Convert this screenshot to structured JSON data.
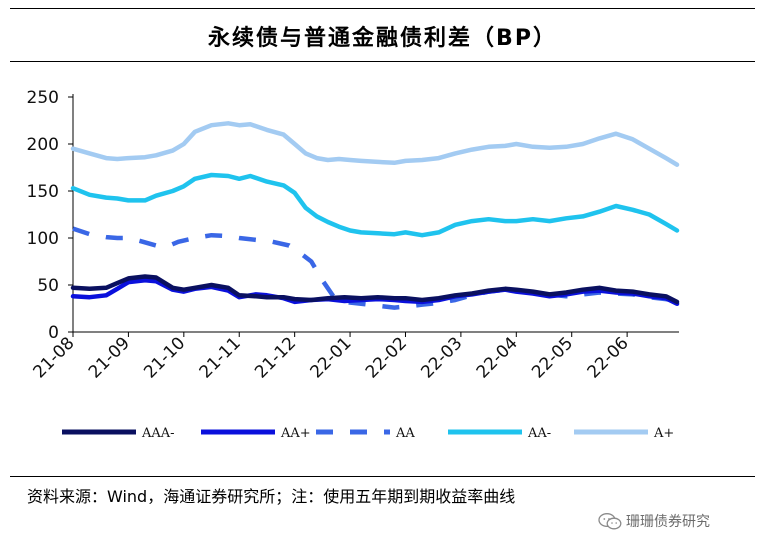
{
  "chart_data": {
    "type": "line",
    "title": "永续债与普通金融债利差（BP）",
    "xlabel": "",
    "ylabel": "",
    "ylim": [
      0,
      250
    ],
    "yticks": [
      0,
      50,
      100,
      150,
      200,
      250
    ],
    "xlim": [
      0,
      10.9
    ],
    "xticks": [
      {
        "label": "21-08",
        "pos": 0
      },
      {
        "label": "21-09",
        "pos": 1
      },
      {
        "label": "21-10",
        "pos": 2
      },
      {
        "label": "21-11",
        "pos": 3
      },
      {
        "label": "21-12",
        "pos": 4
      },
      {
        "label": "22-01",
        "pos": 5
      },
      {
        "label": "22-02",
        "pos": 6
      },
      {
        "label": "22-03",
        "pos": 7
      },
      {
        "label": "22-04",
        "pos": 8
      },
      {
        "label": "22-05",
        "pos": 9
      },
      {
        "label": "22-06",
        "pos": 10
      }
    ],
    "grid": false,
    "legend_position": "bottom",
    "series": [
      {
        "name": "AAA-",
        "color": "#0a1060",
        "dash": "solid",
        "x": [
          0,
          0.3,
          0.6,
          0.8,
          1.0,
          1.3,
          1.5,
          1.8,
          2.0,
          2.2,
          2.5,
          2.8,
          3.0,
          3.3,
          3.5,
          3.8,
          4.0,
          4.3,
          4.6,
          4.9,
          5.2,
          5.5,
          5.8,
          6.0,
          6.3,
          6.6,
          6.9,
          7.2,
          7.5,
          7.8,
          8.0,
          8.3,
          8.6,
          8.9,
          9.2,
          9.5,
          9.8,
          10.1,
          10.4,
          10.7,
          10.9
        ],
        "y": [
          47,
          46,
          47,
          52,
          57,
          59,
          58,
          47,
          45,
          47,
          50,
          47,
          39,
          38,
          37,
          37,
          35,
          34,
          36,
          37,
          36,
          37,
          36,
          36,
          34,
          36,
          39,
          41,
          44,
          46,
          45,
          43,
          40,
          42,
          45,
          47,
          44,
          43,
          40,
          38,
          32
        ]
      },
      {
        "name": "AA+",
        "color": "#0a10dc",
        "dash": "solid",
        "x": [
          0,
          0.3,
          0.6,
          0.8,
          1.0,
          1.3,
          1.5,
          1.8,
          2.0,
          2.2,
          2.5,
          2.8,
          3.0,
          3.3,
          3.5,
          3.8,
          4.0,
          4.3,
          4.6,
          4.9,
          5.2,
          5.5,
          5.8,
          6.0,
          6.3,
          6.6,
          6.9,
          7.2,
          7.5,
          7.8,
          8.0,
          8.3,
          8.6,
          8.9,
          9.2,
          9.5,
          9.8,
          10.1,
          10.4,
          10.7,
          10.9
        ],
        "y": [
          38,
          37,
          39,
          46,
          53,
          55,
          54,
          45,
          43,
          46,
          48,
          44,
          37,
          40,
          39,
          36,
          32,
          34,
          35,
          33,
          34,
          35,
          34,
          33,
          32,
          34,
          38,
          40,
          43,
          45,
          43,
          41,
          38,
          40,
          43,
          44,
          42,
          41,
          38,
          36,
          30
        ]
      },
      {
        "name": "AA",
        "color": "#3a67e6",
        "dash": "dashed",
        "x": [
          0,
          0.3,
          0.6,
          0.8,
          1.0,
          1.2,
          1.5,
          1.7,
          1.9,
          2.2,
          2.5,
          2.8,
          3.0,
          3.3,
          3.6,
          3.9,
          4.1,
          4.3,
          4.5,
          4.7,
          4.9,
          5.2,
          5.5,
          5.8,
          6.0,
          6.3,
          6.6,
          6.9,
          7.2,
          7.5,
          7.8,
          8.0,
          8.3,
          8.6,
          8.9,
          9.2,
          9.5,
          9.8,
          10.1,
          10.4,
          10.7,
          10.9
        ],
        "y": [
          110,
          104,
          101,
          100,
          100,
          97,
          92,
          91,
          96,
          100,
          103,
          102,
          100,
          98,
          96,
          92,
          84,
          75,
          55,
          38,
          32,
          30,
          28,
          26,
          27,
          29,
          31,
          34,
          39,
          43,
          45,
          44,
          42,
          40,
          38,
          40,
          42,
          41,
          40,
          37,
          35,
          33
        ]
      },
      {
        "name": "AA-",
        "color": "#1fc3ee",
        "dash": "solid",
        "x": [
          0,
          0.3,
          0.6,
          0.8,
          1.0,
          1.3,
          1.5,
          1.8,
          2.0,
          2.2,
          2.5,
          2.8,
          3.0,
          3.2,
          3.5,
          3.8,
          4.0,
          4.2,
          4.4,
          4.6,
          4.8,
          5.0,
          5.2,
          5.5,
          5.8,
          6.0,
          6.3,
          6.6,
          6.9,
          7.2,
          7.5,
          7.8,
          8.0,
          8.3,
          8.6,
          8.9,
          9.2,
          9.5,
          9.8,
          10.1,
          10.4,
          10.7,
          10.9
        ],
        "y": [
          153,
          146,
          143,
          142,
          140,
          140,
          145,
          150,
          155,
          163,
          167,
          166,
          163,
          166,
          160,
          156,
          148,
          132,
          123,
          117,
          112,
          108,
          106,
          105,
          104,
          106,
          103,
          106,
          114,
          118,
          120,
          118,
          118,
          120,
          118,
          121,
          123,
          128,
          134,
          130,
          125,
          115,
          108
        ]
      },
      {
        "name": "A+",
        "color": "#a3cbf2",
        "dash": "solid",
        "x": [
          0,
          0.3,
          0.6,
          0.8,
          1.0,
          1.3,
          1.5,
          1.8,
          2.0,
          2.2,
          2.5,
          2.8,
          3.0,
          3.2,
          3.5,
          3.8,
          4.0,
          4.2,
          4.4,
          4.6,
          4.8,
          5.0,
          5.2,
          5.5,
          5.8,
          6.0,
          6.3,
          6.6,
          6.9,
          7.2,
          7.5,
          7.8,
          8.0,
          8.3,
          8.6,
          8.9,
          9.2,
          9.5,
          9.8,
          10.1,
          10.4,
          10.7,
          10.9
        ],
        "y": [
          195,
          190,
          185,
          184,
          185,
          186,
          188,
          193,
          200,
          213,
          220,
          222,
          220,
          221,
          215,
          210,
          200,
          190,
          185,
          183,
          184,
          183,
          182,
          181,
          180,
          182,
          183,
          185,
          190,
          194,
          197,
          198,
          200,
          197,
          196,
          197,
          200,
          206,
          211,
          205,
          195,
          185,
          178
        ]
      }
    ]
  },
  "source_note": "资料来源：Wind，海通证券研究所；注：使用五年期到期收益率曲线",
  "watermark": "珊珊债券研究"
}
